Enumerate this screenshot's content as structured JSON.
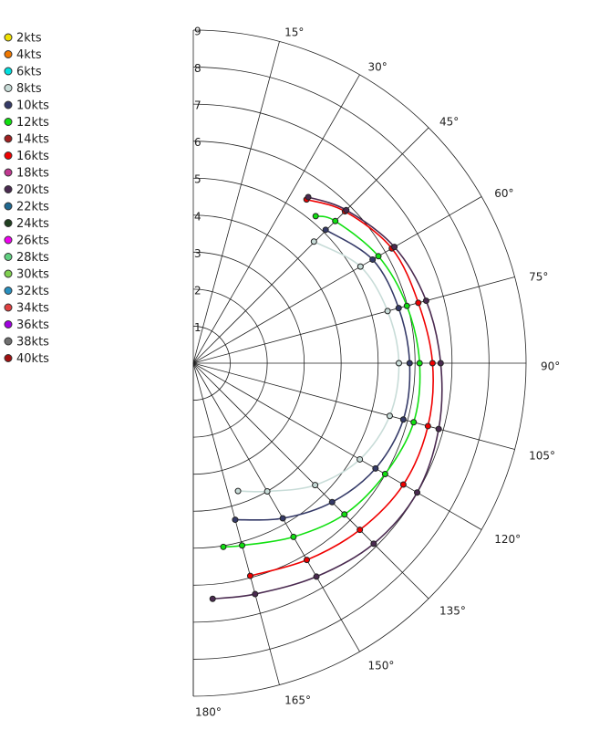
{
  "chart_data": {
    "type": "polar",
    "rlim": [
      0,
      9
    ],
    "rticks": [
      1,
      2,
      3,
      4,
      5,
      6,
      7,
      8,
      9
    ],
    "angle_ticks": [
      {
        "value": 15,
        "label": "15°"
      },
      {
        "value": 30,
        "label": "30°"
      },
      {
        "value": 45,
        "label": "45°"
      },
      {
        "value": 60,
        "label": "60°"
      },
      {
        "value": 75,
        "label": "75°"
      },
      {
        "value": 90,
        "label": "90°"
      },
      {
        "value": 105,
        "label": "105°"
      },
      {
        "value": 120,
        "label": "120°"
      },
      {
        "value": 135,
        "label": "135°"
      },
      {
        "value": 150,
        "label": "150°"
      },
      {
        "value": 165,
        "label": "165°"
      },
      {
        "value": 180,
        "label": "180°"
      }
    ],
    "series": [
      {
        "name": "2kts",
        "color": "#f0e000"
      },
      {
        "name": "4kts",
        "color": "#f07800"
      },
      {
        "name": "6kts",
        "color": "#00e0e0"
      },
      {
        "name": "8kts",
        "color": "#c8dcd8",
        "x": [
          44.8,
          60,
          75,
          90,
          105,
          120,
          135,
          150,
          160.7
        ],
        "values": [
          4.63,
          5.22,
          5.44,
          5.56,
          5.5,
          5.2,
          4.66,
          4.0,
          3.66
        ]
      },
      {
        "name": "10kts",
        "color": "#353a68",
        "x": [
          44.8,
          60,
          75,
          90,
          105,
          120,
          135,
          150,
          165
        ],
        "values": [
          5.08,
          5.6,
          5.75,
          5.85,
          5.88,
          5.69,
          5.31,
          4.84,
          4.38
        ]
      },
      {
        "name": "12kts",
        "color": "#10e010",
        "x": [
          39.8,
          45,
          60,
          75,
          90,
          105,
          120,
          135,
          150,
          165,
          170.7
        ],
        "values": [
          5.17,
          5.43,
          5.78,
          5.98,
          6.12,
          6.17,
          5.99,
          5.78,
          5.42,
          5.1,
          5.03
        ]
      },
      {
        "name": "14kts",
        "color": "#a02020"
      },
      {
        "name": "16kts",
        "color": "#f00000",
        "x": [
          34.7,
          45,
          60,
          75,
          90,
          105,
          120,
          135,
          150,
          165
        ],
        "values": [
          5.38,
          5.8,
          6.2,
          6.3,
          6.47,
          6.57,
          6.56,
          6.37,
          6.14,
          5.95
        ]
      },
      {
        "name": "18kts",
        "color": "#c03890"
      },
      {
        "name": "20kts",
        "color": "#4a2a50",
        "x": [
          34.7,
          45,
          60,
          75,
          90,
          105,
          120,
          135,
          150,
          165,
          175.3
        ],
        "values": [
          5.46,
          5.85,
          6.28,
          6.52,
          6.69,
          6.87,
          6.99,
          6.9,
          6.66,
          6.46,
          6.39
        ]
      },
      {
        "name": "22kts",
        "color": "#206890"
      },
      {
        "name": "24kts",
        "color": "#204020"
      },
      {
        "name": "26kts",
        "color": "#f000f0"
      },
      {
        "name": "28kts",
        "color": "#60d080"
      },
      {
        "name": "30kts",
        "color": "#80d050"
      },
      {
        "name": "32kts",
        "color": "#2890c0"
      },
      {
        "name": "34kts",
        "color": "#e04040"
      },
      {
        "name": "36kts",
        "color": "#a000e0"
      },
      {
        "name": "38kts",
        "color": "#707070"
      },
      {
        "name": "40kts",
        "color": "#a01010"
      }
    ]
  }
}
